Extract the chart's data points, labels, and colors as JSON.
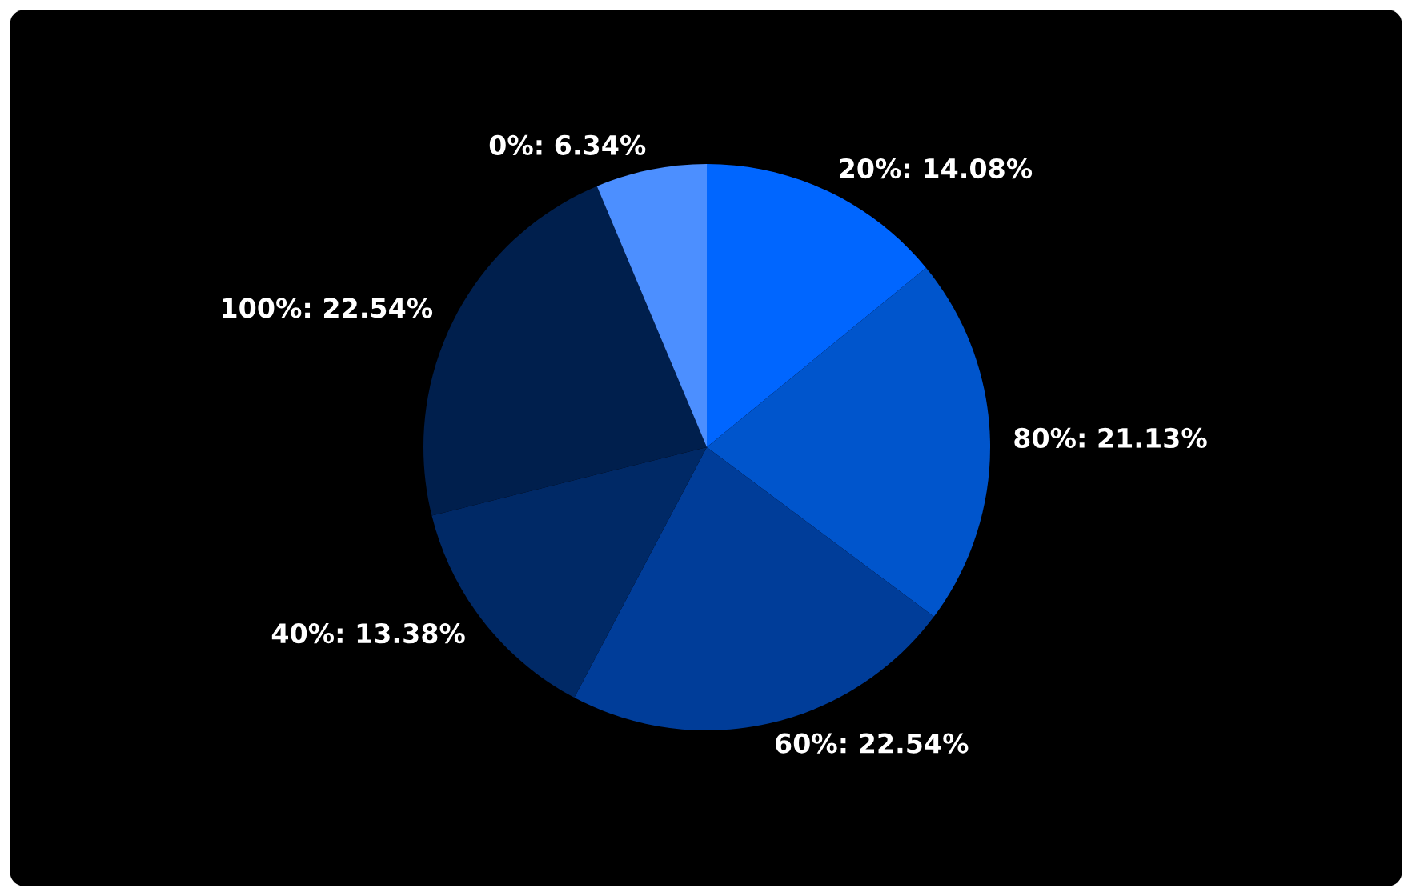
{
  "chart_data": {
    "type": "pie",
    "categories": [
      "20%",
      "80%",
      "60%",
      "40%",
      "100%",
      "0%"
    ],
    "values": [
      14.08,
      21.13,
      22.54,
      13.38,
      22.54,
      6.34
    ],
    "value_labels": [
      "14.08%",
      "21.13%",
      "22.54%",
      "13.38%",
      "22.54%",
      "6.34%"
    ],
    "colors": [
      "#0066ff",
      "#0055cc",
      "#003d99",
      "#002966",
      "#001f4d",
      "#4c8fff"
    ],
    "legend": false
  }
}
